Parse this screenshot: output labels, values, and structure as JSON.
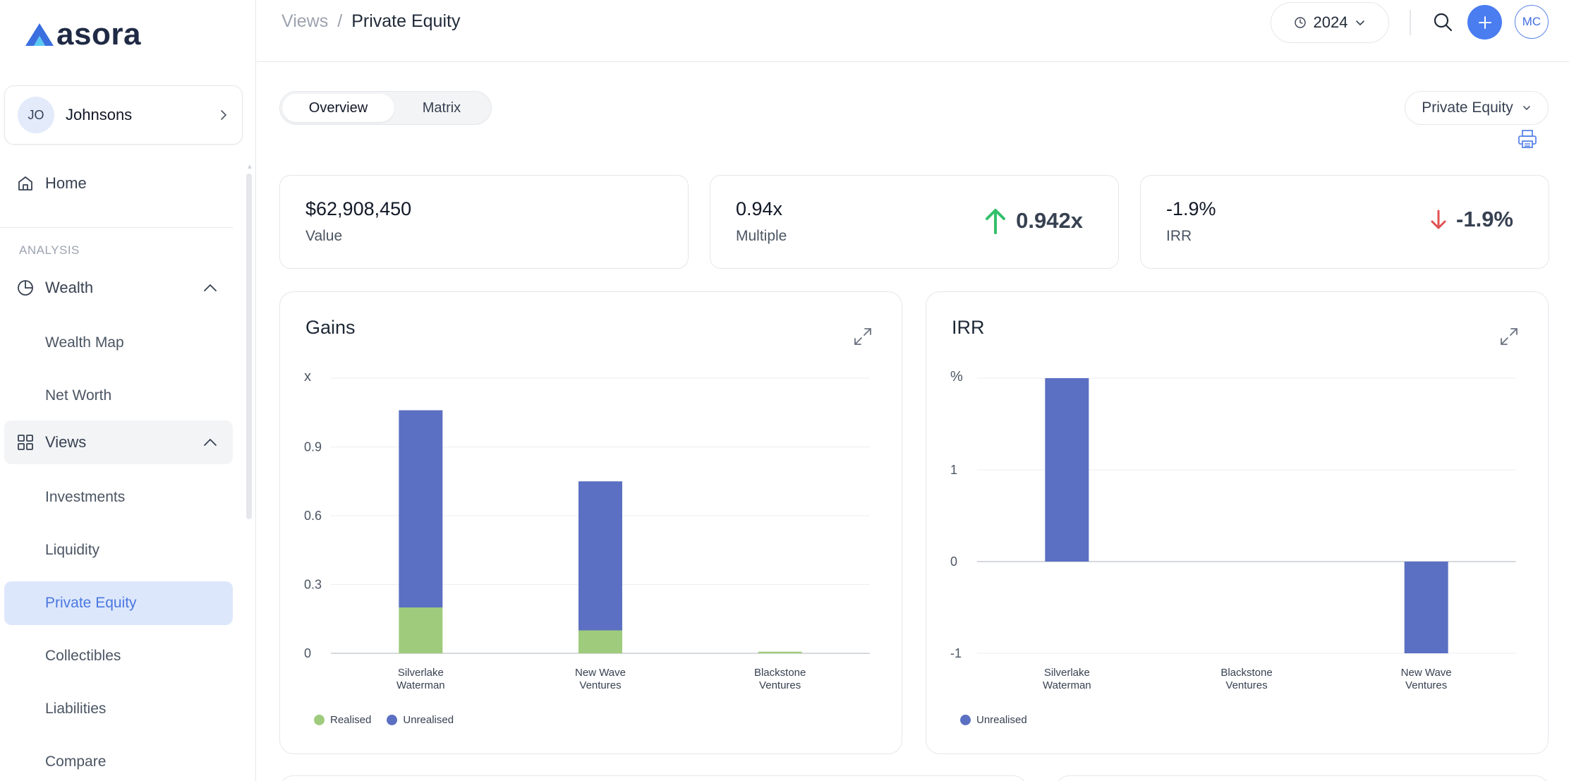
{
  "app": {
    "logo_text": "asora"
  },
  "sidebar": {
    "profile": {
      "initials": "JO",
      "name": "Johnsons"
    },
    "home_label": "Home",
    "section_label": "ANALYSIS",
    "wealth": {
      "label": "Wealth",
      "items": [
        "Wealth Map",
        "Net Worth"
      ]
    },
    "views": {
      "label": "Views",
      "items": [
        "Investments",
        "Liquidity",
        "Private Equity",
        "Collectibles",
        "Liabilities",
        "Compare"
      ]
    }
  },
  "header": {
    "breadcrumb_parent": "Views",
    "breadcrumb_sep": "/",
    "breadcrumb_current": "Private Equity",
    "year": "2024",
    "user_initials": "MC"
  },
  "tabs": [
    "Overview",
    "Matrix"
  ],
  "filter": {
    "selected": "Private Equity"
  },
  "kpis": [
    {
      "value": "$62,908,450",
      "label": "Value"
    },
    {
      "value": "0.94x",
      "label": "Multiple",
      "badge": "0.942x",
      "trend": "up"
    },
    {
      "value": "-1.9%",
      "label": "IRR",
      "badge": "-1.9%",
      "trend": "down"
    }
  ],
  "colors": {
    "realised": "#9fcb7c",
    "unrealised": "#5b70c2",
    "accent": "#4a7df0",
    "up": "#34c06b",
    "down": "#e05252"
  },
  "chart_data": [
    {
      "type": "bar",
      "stacked": true,
      "title": "Gains",
      "ylabel": "x",
      "ylim": [
        0,
        1.2
      ],
      "yticks": [
        "0",
        "0.3",
        "0.6",
        "0.9"
      ],
      "categories": [
        [
          "Silverlake",
          "Waterman"
        ],
        [
          "New Wave",
          "Ventures"
        ],
        [
          "Blackstone",
          "Ventures"
        ]
      ],
      "series": [
        {
          "name": "Realised",
          "values": [
            0.2,
            0.1,
            0.007
          ]
        },
        {
          "name": "Unrealised",
          "values": [
            0.86,
            0.65,
            0
          ]
        }
      ],
      "legend": "bottom-left"
    },
    {
      "type": "bar",
      "title": "IRR",
      "ylabel": "%",
      "ylim": [
        -1,
        2
      ],
      "yticks": [
        "-1",
        "0",
        "1"
      ],
      "categories": [
        [
          "Silverlake",
          "Waterman"
        ],
        [
          "Blackstone",
          "Ventures"
        ],
        [
          "New Wave",
          "Ventures"
        ]
      ],
      "series": [
        {
          "name": "Unrealised",
          "values": [
            2.0,
            0,
            -1.0
          ]
        }
      ],
      "legend": "bottom-left"
    }
  ]
}
